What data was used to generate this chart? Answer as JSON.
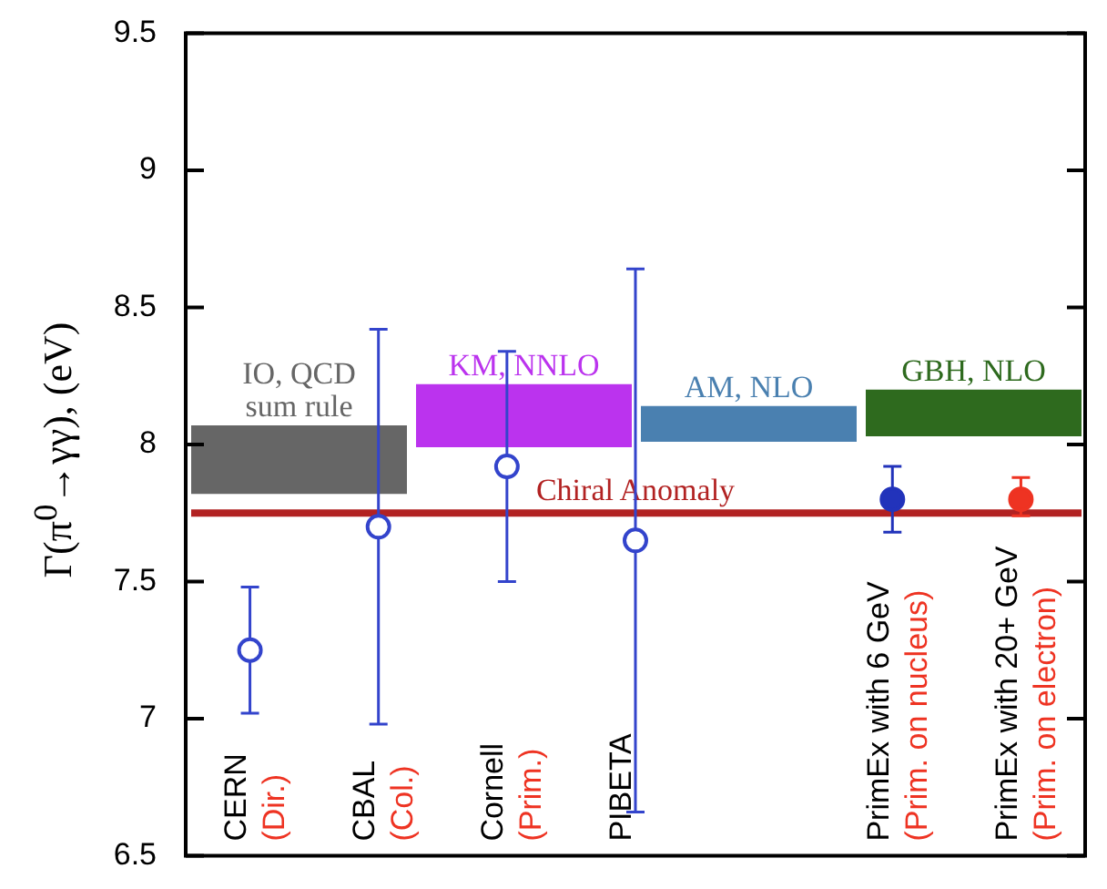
{
  "chart_data": {
    "type": "scatter",
    "ylabel": "Γ(π$^{0}$→γγ), (eV)",
    "categories": [
      "CERN\n(Dir.)",
      "CBAL\n(Col.)",
      "Cornell\n(Prim.)",
      "PIBETA",
      null,
      "PrimEx with 6 GeV\n(Prim. on nucleus)",
      "PrimEx with 20+ GeV\n(Prim. on electron)"
    ],
    "series": [
      {
        "color": "#3344cc",
        "values": [
          7.25,
          7.7,
          7.92,
          7.65,
          null,
          null,
          null
        ],
        "errors": [
          [
            7.02,
            7.48
          ],
          [
            6.98,
            8.42
          ],
          [
            7.5,
            8.34
          ],
          [
            6.66,
            8.64
          ],
          null,
          null,
          null
        ]
      },
      {
        "colors": [
          null,
          null,
          null,
          null,
          null,
          "#2233bb",
          "#ee3322"
        ],
        "values": [
          null,
          null,
          null,
          null,
          null,
          7.8,
          7.8
        ],
        "errors": [
          null,
          null,
          null,
          null,
          null,
          [
            7.68,
            7.92
          ],
          [
            7.74,
            7.88
          ]
        ]
      }
    ],
    "ylim": [
      6.5,
      9.5
    ],
    "yticks": [
      6.5,
      7,
      7.5,
      8,
      8.5,
      9,
      9.5
    ],
    "tick_labels": "y",
    "marker": "circle",
    "ref_lines": [
      {
        "axis": "y",
        "value": 7.75,
        "label": "Chiral Anomaly",
        "color": "#b22222"
      }
    ],
    "bands": [
      {
        "axis": "y",
        "from": 7.82,
        "to": 8.07,
        "label": "IO, QCD\nsum rule",
        "color": "#666666"
      },
      {
        "axis": "y",
        "from": 7.99,
        "to": 8.22,
        "label": "KM, NNLO",
        "color": "#bb33ee"
      },
      {
        "axis": "y",
        "from": 8.01,
        "to": 8.14,
        "label": "AM, NLO",
        "color": "#4a80b0"
      },
      {
        "axis": "y",
        "from": 8.03,
        "to": 8.2,
        "label": "GBH, NLO",
        "color": "#2e6a1e"
      }
    ]
  }
}
